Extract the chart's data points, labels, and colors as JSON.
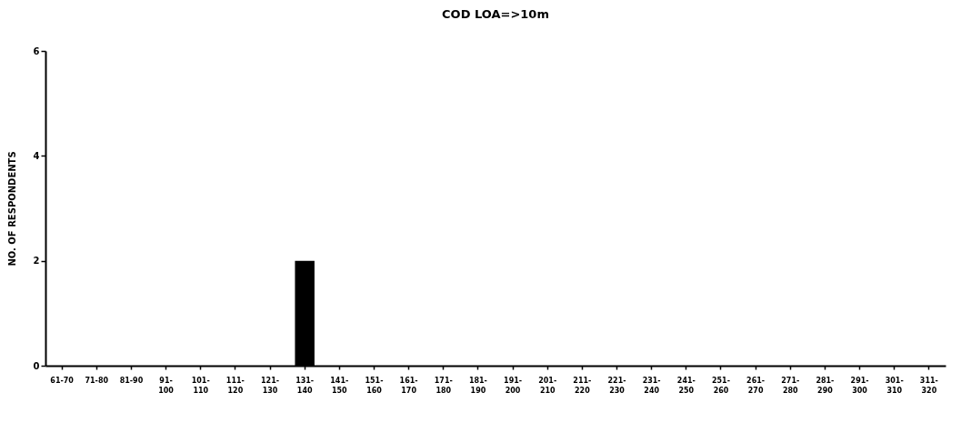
{
  "chart_data": {
    "type": "bar",
    "title": "COD LOA=>10m",
    "ylabel": "NO. OF RESPONDENTS",
    "categories": [
      "61-70",
      "71-80",
      "81-90",
      "91-100",
      "101-110",
      "111-120",
      "121-130",
      "131-140",
      "141-150",
      "151-160",
      "161-170",
      "171-180",
      "181-190",
      "191-200",
      "201-210",
      "211-220",
      "221-230",
      "231-240",
      "241-250",
      "251-260",
      "261-270",
      "271-280",
      "281-290",
      "291-300",
      "301-310",
      "311-320"
    ],
    "values": [
      0,
      0,
      0,
      0,
      0,
      0,
      0,
      2,
      0,
      0,
      0,
      0,
      0,
      0,
      0,
      0,
      0,
      0,
      0,
      0,
      0,
      0,
      0,
      0,
      0,
      0
    ],
    "color": "#000000",
    "ylim": [
      0,
      6
    ],
    "yticks": [
      0,
      2,
      4,
      6
    ],
    "grid": false,
    "legend": false
  }
}
